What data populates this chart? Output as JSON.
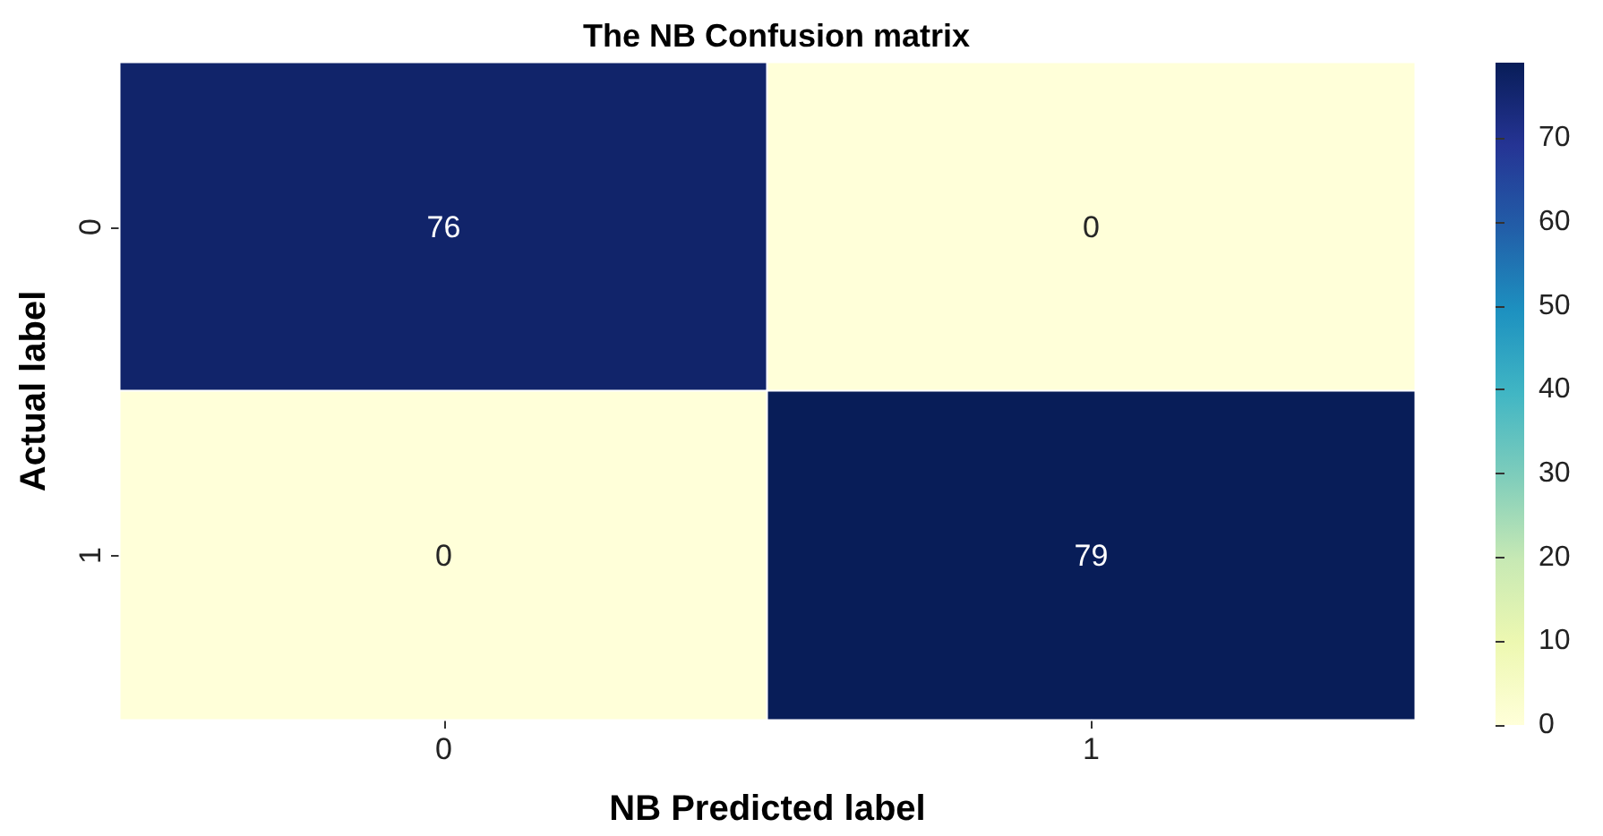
{
  "chart_data": {
    "type": "heatmap",
    "title": "The NB Confusion matrix",
    "xlabel": "NB Predicted label",
    "ylabel": "Actual label",
    "categories": [
      "0",
      "1"
    ],
    "y_categories": [
      "0",
      "1"
    ],
    "cells": [
      [
        76,
        0
      ],
      [
        0,
        79
      ]
    ],
    "data_labels": true,
    "clim": [
      0,
      79
    ],
    "cticks": [
      0,
      10,
      20,
      30,
      40,
      50,
      60,
      70
    ]
  }
}
